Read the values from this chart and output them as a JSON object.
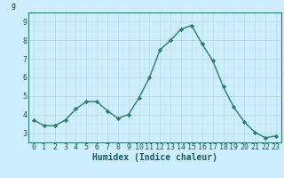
{
  "x": [
    0,
    1,
    2,
    3,
    4,
    5,
    6,
    7,
    8,
    9,
    10,
    11,
    12,
    13,
    14,
    15,
    16,
    17,
    18,
    19,
    20,
    21,
    22,
    23
  ],
  "y": [
    3.7,
    3.4,
    3.4,
    3.7,
    4.3,
    4.7,
    4.7,
    4.2,
    3.8,
    4.0,
    4.9,
    6.0,
    7.5,
    8.0,
    8.6,
    8.8,
    7.8,
    6.9,
    5.5,
    4.4,
    3.6,
    3.05,
    2.75,
    2.85
  ],
  "line_color": "#2e7d6e",
  "bg_color": "#cceeff",
  "grid_color_major": "#b0d8d8",
  "grid_color_minor": "#d0ecec",
  "xlabel": "Humidex (Indice chaleur)",
  "ylim": [
    2.5,
    9.5
  ],
  "xlim": [
    -0.5,
    23.5
  ],
  "yticks": [
    3,
    4,
    5,
    6,
    7,
    8,
    9
  ],
  "xtick_labels": [
    "0",
    "1",
    "2",
    "3",
    "4",
    "5",
    "6",
    "7",
    "8",
    "9",
    "10",
    "11",
    "12",
    "13",
    "14",
    "15",
    "16",
    "17",
    "18",
    "19",
    "20",
    "21",
    "22",
    "23"
  ],
  "marker": "D",
  "marker_size": 2.2,
  "line_width": 1.0,
  "xlabel_fontsize": 7.0,
  "tick_fontsize": 6.0,
  "ylabel_top": "g"
}
